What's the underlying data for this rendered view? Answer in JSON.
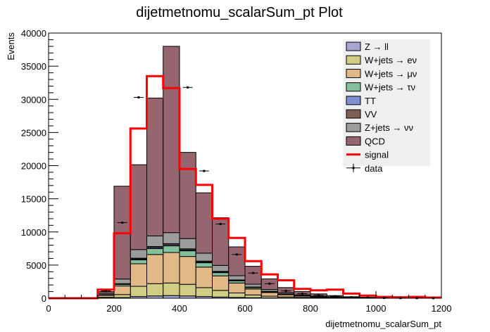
{
  "chart_data": {
    "type": "bar",
    "stacked": true,
    "title": "dijetmetnomu_scalarSum_pt Plot",
    "xlabel": "dijetmetnomu_scalarSum_pt",
    "ylabel": "Events",
    "xlim": [
      0,
      1200
    ],
    "ylim": [
      0,
      40000
    ],
    "x_ticks": [
      0,
      200,
      400,
      600,
      800,
      1000,
      1200
    ],
    "y_ticks": [
      0,
      5000,
      10000,
      15000,
      20000,
      25000,
      30000,
      35000,
      40000
    ],
    "grid": false,
    "legend_position": "top-right",
    "bin_edges": [
      0,
      50,
      100,
      150,
      200,
      250,
      300,
      350,
      400,
      450,
      500,
      550,
      600,
      650,
      700,
      750,
      800,
      850,
      900,
      950,
      1000,
      1050,
      1100,
      1150,
      1200
    ],
    "series": [
      {
        "name": "Z → ll",
        "kind": "stack",
        "color": "#a8a5d1",
        "values": [
          0,
          0,
          0,
          20,
          100,
          250,
          350,
          400,
          350,
          250,
          180,
          120,
          80,
          50,
          30,
          20,
          12,
          8,
          5,
          3,
          2,
          1,
          1,
          0
        ]
      },
      {
        "name": "W+jets → eν",
        "kind": "stack",
        "color": "#d2cd85",
        "values": [
          0,
          0,
          0,
          120,
          450,
          1550,
          1850,
          1900,
          1750,
          1350,
          1000,
          680,
          420,
          260,
          160,
          100,
          60,
          40,
          25,
          15,
          10,
          5,
          5,
          0
        ]
      },
      {
        "name": "W+jets → μν",
        "kind": "stack",
        "color": "#e1b986",
        "values": [
          0,
          0,
          0,
          300,
          1300,
          3400,
          4400,
          4600,
          4200,
          3100,
          2200,
          1500,
          900,
          550,
          330,
          200,
          120,
          80,
          50,
          30,
          20,
          10,
          5,
          0
        ]
      },
      {
        "name": "W+jets → τν",
        "kind": "stack",
        "color": "#85c09d",
        "values": [
          0,
          0,
          0,
          60,
          230,
          600,
          900,
          1000,
          850,
          650,
          480,
          330,
          200,
          120,
          70,
          45,
          25,
          15,
          10,
          5,
          5,
          0,
          0,
          0
        ]
      },
      {
        "name": "TT",
        "kind": "stack",
        "color": "#7e8fd3",
        "values": [
          0,
          0,
          0,
          20,
          60,
          120,
          150,
          160,
          140,
          110,
          80,
          50,
          30,
          20,
          10,
          5,
          5,
          0,
          0,
          0,
          0,
          0,
          0,
          0
        ]
      },
      {
        "name": "VV",
        "kind": "stack",
        "color": "#7e6052",
        "values": [
          0,
          0,
          0,
          20,
          60,
          120,
          150,
          170,
          160,
          140,
          110,
          80,
          60,
          40,
          30,
          20,
          12,
          8,
          5,
          5,
          0,
          0,
          0,
          0
        ]
      },
      {
        "name": "Z+jets → νν",
        "kind": "stack",
        "color": "#9c9c9c",
        "values": [
          0,
          0,
          0,
          200,
          700,
          1300,
          1600,
          1670,
          1550,
          1200,
          900,
          640,
          430,
          280,
          180,
          120,
          75,
          45,
          30,
          20,
          10,
          5,
          5,
          0
        ]
      },
      {
        "name": "QCD",
        "kind": "stack",
        "color": "#966670",
        "values": [
          0,
          0,
          0,
          260,
          14000,
          12800,
          20800,
          28100,
          13000,
          9100,
          7200,
          4350,
          2700,
          1600,
          800,
          500,
          350,
          200,
          100,
          60,
          30,
          20,
          10,
          0
        ]
      },
      {
        "name": "signal",
        "kind": "line",
        "color": "#ff0000",
        "values": [
          0,
          0,
          0,
          1300,
          9800,
          25600,
          33500,
          31700,
          19500,
          17100,
          12000,
          9100,
          5600,
          3600,
          2700,
          1400,
          1200,
          1300,
          700,
          400,
          200,
          150,
          200,
          100
        ]
      },
      {
        "name": "data",
        "kind": "points",
        "color": "#000000",
        "values": [
          0,
          0,
          0,
          1100,
          11400,
          30300,
          0,
          0,
          31800,
          19200,
          11200,
          6600,
          3800,
          2200,
          1100,
          700,
          450,
          300,
          150,
          100,
          50,
          30,
          20,
          10
        ]
      }
    ]
  }
}
